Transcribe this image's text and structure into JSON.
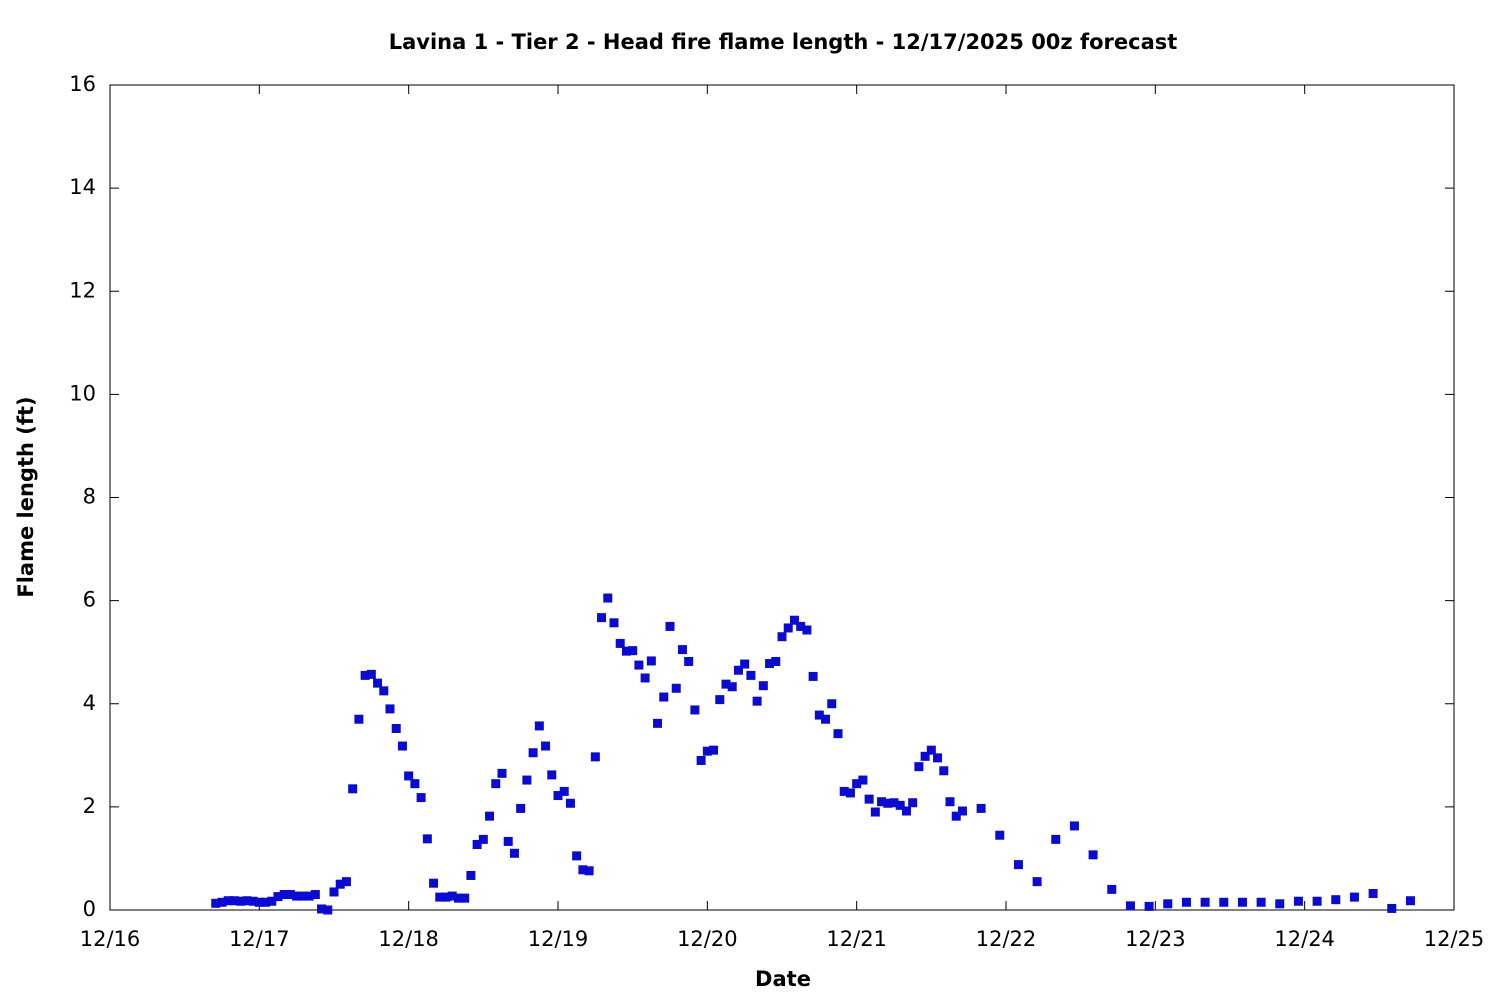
{
  "chart_data": {
    "type": "scatter",
    "title": "Lavina 1 - Tier 2 - Head fire flame length - 12/17/2025 00z forecast",
    "x_label": "Date",
    "y_label": "Flame length (ft)",
    "color": "#0b0bd0",
    "grid": false,
    "xlim": [
      0,
      216
    ],
    "xticks": [
      {
        "value": 0,
        "label": "12/16"
      },
      {
        "value": 24,
        "label": "12/17"
      },
      {
        "value": 48,
        "label": "12/18"
      },
      {
        "value": 72,
        "label": "12/19"
      },
      {
        "value": 96,
        "label": "12/20"
      },
      {
        "value": 120,
        "label": "12/21"
      },
      {
        "value": 144,
        "label": "12/22"
      },
      {
        "value": 168,
        "label": "12/23"
      },
      {
        "value": 192,
        "label": "12/24"
      },
      {
        "value": 216,
        "label": "12/25"
      }
    ],
    "ylim": [
      0,
      16
    ],
    "yticks": [
      0,
      2,
      4,
      6,
      8,
      10,
      12,
      14,
      16
    ],
    "x": [
      17,
      18,
      19,
      20,
      21,
      22,
      23,
      24,
      25,
      26,
      27,
      28,
      29,
      30,
      31,
      32,
      33,
      34,
      35,
      36,
      37,
      38,
      39,
      40,
      41,
      42,
      43,
      44,
      45,
      46,
      47,
      48,
      49,
      50,
      51,
      52,
      53,
      54,
      55,
      56,
      57,
      58,
      59,
      60,
      61,
      62,
      63,
      64,
      65,
      66,
      67,
      68,
      69,
      70,
      71,
      72,
      73,
      74,
      75,
      76,
      77,
      78,
      79,
      80,
      81,
      82,
      83,
      84,
      85,
      86,
      87,
      88,
      89,
      90,
      91,
      92,
      93,
      94,
      95,
      96,
      97,
      98,
      99,
      100,
      101,
      102,
      103,
      104,
      105,
      106,
      107,
      108,
      109,
      110,
      111,
      112,
      113,
      114,
      115,
      116,
      117,
      118,
      119,
      120,
      121,
      122,
      123,
      124,
      125,
      126,
      127,
      128,
      129,
      130,
      131,
      132,
      133,
      134,
      135,
      136,
      137,
      140,
      143,
      146,
      149,
      152,
      155,
      158,
      161,
      164,
      167,
      170,
      173,
      176,
      179,
      182,
      185,
      188,
      191,
      194,
      197,
      200,
      203,
      206,
      209
    ],
    "values": [
      0.13,
      0.15,
      0.18,
      0.18,
      0.17,
      0.18,
      0.17,
      0.15,
      0.15,
      0.17,
      0.26,
      0.3,
      0.3,
      0.27,
      0.27,
      0.27,
      0.3,
      0.02,
      0.0,
      0.35,
      0.5,
      0.55,
      2.35,
      3.7,
      4.55,
      4.57,
      4.4,
      4.25,
      3.9,
      3.52,
      3.18,
      2.6,
      2.45,
      2.18,
      1.38,
      0.52,
      0.25,
      0.25,
      0.27,
      0.23,
      0.23,
      0.67,
      1.27,
      1.37,
      1.82,
      2.45,
      2.65,
      1.33,
      1.1,
      1.97,
      2.52,
      3.05,
      3.57,
      3.18,
      2.62,
      2.22,
      2.3,
      2.07,
      1.05,
      0.78,
      0.76,
      2.97,
      5.67,
      6.05,
      5.57,
      5.17,
      5.02,
      5.03,
      4.75,
      4.5,
      4.83,
      3.62,
      4.13,
      5.5,
      4.3,
      5.05,
      4.82,
      3.88,
      2.9,
      3.08,
      3.1,
      4.08,
      4.38,
      4.33,
      4.65,
      4.77,
      4.55,
      4.05,
      4.35,
      4.78,
      4.82,
      5.3,
      5.47,
      5.62,
      5.5,
      5.43,
      4.53,
      3.78,
      3.7,
      4.0,
      3.42,
      2.3,
      2.27,
      2.45,
      2.52,
      2.15,
      1.9,
      2.1,
      2.07,
      2.08,
      2.03,
      1.92,
      2.08,
      2.78,
      2.98,
      3.1,
      2.95,
      2.7,
      2.1,
      1.82,
      1.92,
      1.97,
      1.45,
      0.88,
      0.55,
      1.37,
      1.63,
      1.07,
      0.4,
      0.08,
      0.07,
      0.12,
      0.15,
      0.15,
      0.15,
      0.15,
      0.15,
      0.12,
      0.17,
      0.17,
      0.2,
      0.25,
      0.32,
      0.03,
      0.18
    ]
  }
}
